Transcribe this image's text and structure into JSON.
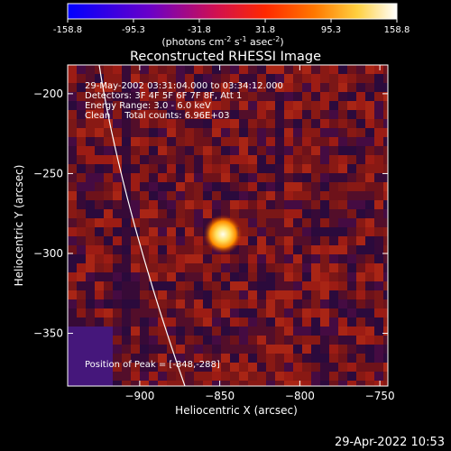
{
  "colorbar": {
    "ticks": [
      "-158.8",
      "-95.3",
      "-31.8",
      "31.8",
      "95.3",
      "158.8"
    ],
    "units_prefix": "(photons cm",
    "units_exp1": "-2",
    "units_mid": " s",
    "units_exp2": "-1",
    "units_mid2": " asec",
    "units_exp3": "-2",
    "units_suffix": ")"
  },
  "chart_data": {
    "type": "heatmap",
    "title": "Reconstructed RHESSI Image",
    "xlabel": "Heliocentric X (arcsec)",
    "ylabel": "Heliocentric Y (arcsec)",
    "xlim": [
      -945,
      -745
    ],
    "ylim": [
      -383,
      -182
    ],
    "xticks": [
      -900,
      -850,
      -800,
      -750
    ],
    "yticks": [
      -200,
      -250,
      -300,
      -350
    ],
    "xtick_labels": [
      "−900",
      "−850",
      "−800",
      "−750"
    ],
    "ytick_labels": [
      "−200",
      "−250",
      "−300",
      "−350"
    ],
    "value_range": [
      -158.8,
      158.8
    ],
    "colormap": "purple-red-yellow-white",
    "annotations": [
      "29-May-2002 03:31:04.000 to 03:34:12.000",
      "Detectors: 3F 4F 5F 6F 7F 8F, Att 1",
      "Energy Range: 3.0 - 6.0 keV",
      "Clean     Total counts: 6.96E+03"
    ],
    "peak_label": "Position of Peak = [-848,-288]",
    "peak": [
      -848,
      -288
    ],
    "peak_value": 158.8
  },
  "footer": {
    "timestamp": "29-Apr-2022 10:53"
  }
}
